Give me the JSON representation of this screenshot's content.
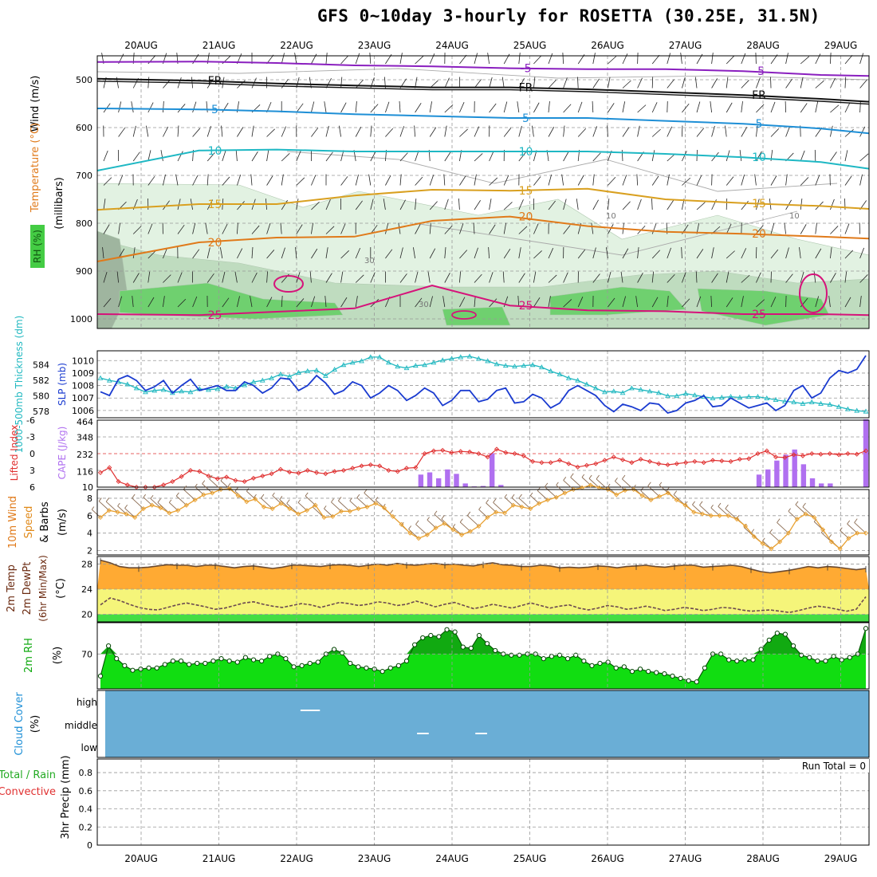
{
  "title": "GFS 0~10day 3-hourly for ROSETTA (30.25E, 31.5N)",
  "colors": {
    "axis": "#000000",
    "grid": "#999999",
    "purple": "#8a1fbf",
    "black": "#111111",
    "blue": "#1e8fd6",
    "cyan": "#1fb8c4",
    "gold": "#d9a020",
    "orange": "#e07a1a",
    "magenta": "#d6127a",
    "rh_light": "#e2f2e2",
    "rh_mid": "#bfdcbf",
    "rh_green": "#6fd06f",
    "rh_dark": "#9fb59f",
    "slp": "#1a3bd0",
    "thick": "#20b8c0",
    "li": "#e03030",
    "cape": "#b070f0",
    "wind_speed": "#e8a030",
    "barb": "#8a6a50",
    "temp_fill": "#ffaa33",
    "dew_fill": "#f5f57a",
    "low_fill": "#44dd44",
    "rh2m_fill": "#11dd11",
    "rh2m_dark": "#11aa11",
    "cloud": "#6aaed6",
    "cloud_bar": "#ffffff"
  },
  "chart_data": [
    {
      "type": "line",
      "panel": "upper-air",
      "ylabels": [
        "Wind (m/s)",
        "Temperature (°C)",
        "(millibars)",
        "RH (%)"
      ],
      "y_axis": "pressure (mb)",
      "ylim": [
        1020,
        450
      ],
      "yticks": [
        500,
        600,
        700,
        800,
        900,
        1000
      ],
      "x_dates": [
        "20AUG",
        "21AUG",
        "22AUG",
        "23AUG",
        "24AUG",
        "25AUG",
        "26AUG",
        "27AUG",
        "28AUG",
        "29AUG"
      ],
      "isotherms": [
        {
          "label": "-5",
          "color": "purple",
          "x": [
            0,
            1,
            2,
            3,
            4,
            5,
            6,
            7,
            8,
            9,
            9.6
          ],
          "p": [
            463,
            462,
            465,
            470,
            472,
            476,
            478,
            478,
            482,
            490,
            492
          ]
        },
        {
          "label": "FR",
          "color": "black",
          "x": [
            0,
            1,
            2,
            3,
            4,
            5,
            6,
            7,
            8,
            9,
            9.6
          ],
          "p": [
            498,
            502,
            508,
            512,
            516,
            516,
            520,
            526,
            532,
            540,
            546
          ]
        },
        {
          "label": "5",
          "color": "blue",
          "x": [
            0,
            1,
            2,
            3,
            4,
            5,
            6,
            7,
            8,
            9,
            9.6
          ],
          "p": [
            560,
            562,
            566,
            572,
            576,
            580,
            580,
            586,
            592,
            602,
            612
          ]
        },
        {
          "label": "10",
          "color": "cyan",
          "x": [
            0,
            1,
            2,
            3,
            4,
            5,
            6,
            7,
            8,
            9,
            9.6
          ],
          "p": [
            690,
            648,
            646,
            650,
            650,
            650,
            650,
            655,
            662,
            672,
            686
          ]
        },
        {
          "label": "15",
          "color": "gold",
          "x": [
            0,
            1,
            2,
            3,
            4,
            5,
            6,
            7,
            8,
            9,
            9.6
          ],
          "p": [
            772,
            760,
            760,
            742,
            730,
            732,
            728,
            750,
            758,
            764,
            770
          ]
        },
        {
          "label": "20",
          "color": "orange",
          "x": [
            0,
            1,
            2,
            3,
            4,
            5,
            6,
            7,
            8,
            9,
            9.6
          ],
          "p": [
            880,
            840,
            830,
            828,
            795,
            786,
            806,
            818,
            822,
            828,
            832
          ]
        },
        {
          "label": "25",
          "color": "magenta",
          "x": [
            0,
            1,
            2,
            3,
            4,
            5,
            6,
            7,
            8,
            9,
            9.6
          ],
          "p": [
            990,
            992,
            985,
            978,
            930,
            972,
            982,
            984,
            990,
            990,
            992
          ]
        }
      ],
      "contour_labels": [
        "-5",
        "FR",
        "5",
        "10",
        "15",
        "20",
        "25",
        "30",
        "10"
      ]
    },
    {
      "type": "line",
      "panel": "slp-thickness",
      "ylabels": [
        "SLP (mb)",
        "1000-500mb Thickness (dm)"
      ],
      "left_ticks": [
        578,
        580,
        582,
        584
      ],
      "right_ticks": [
        1006,
        1007,
        1008,
        1009,
        1010
      ],
      "series": [
        {
          "name": "SLP (mb)",
          "axis": "right",
          "values": [
            1007.5,
            1007.2,
            1008.5,
            1008.8,
            1008.4,
            1007.6,
            1007.9,
            1008.4,
            1007.4,
            1008.0,
            1008.5,
            1007.6,
            1007.8,
            1008.0,
            1007.6,
            1007.6,
            1008.3,
            1008.0,
            1007.4,
            1007.8,
            1008.6,
            1008.5,
            1007.6,
            1008.0,
            1008.8,
            1008.2,
            1007.3,
            1007.6,
            1008.3,
            1008.0,
            1007.0,
            1007.4,
            1008.0,
            1007.6,
            1006.8,
            1007.2,
            1007.8,
            1007.4,
            1006.4,
            1006.8,
            1007.6,
            1007.6,
            1006.7,
            1006.9,
            1007.6,
            1007.8,
            1006.6,
            1006.7,
            1007.3,
            1007.0,
            1006.2,
            1006.6,
            1007.6,
            1008.0,
            1007.6,
            1007.2,
            1006.4,
            1005.9,
            1006.5,
            1006.3,
            1006.0,
            1006.6,
            1006.5,
            1005.8,
            1006.0,
            1006.6,
            1006.8,
            1007.2,
            1006.3,
            1006.4,
            1007.0,
            1006.6,
            1006.2,
            1006.4,
            1006.6,
            1006.0,
            1006.4,
            1007.6,
            1008.0,
            1007.0,
            1007.4,
            1008.6,
            1009.2,
            1009.0,
            1009.3,
            1010.4
          ]
        },
        {
          "name": "1000-500mb Thickness (dm)",
          "axis": "left",
          "values": [
            582.3,
            582.0,
            581.8,
            581.5,
            581.0,
            580.5,
            580.7,
            580.8,
            580.4,
            580.6,
            580.5,
            580.9,
            580.8,
            580.9,
            581.2,
            581.0,
            581.4,
            581.8,
            582.0,
            582.3,
            582.8,
            582.5,
            583.0,
            583.2,
            583.3,
            582.6,
            583.4,
            584.0,
            584.3,
            584.5,
            585.0,
            585.0,
            584.3,
            583.8,
            583.6,
            583.9,
            584.0,
            584.3,
            584.6,
            584.8,
            585.0,
            585.1,
            584.8,
            584.5,
            584.1,
            583.9,
            583.8,
            583.9,
            584.0,
            583.7,
            583.2,
            582.8,
            582.3,
            582.0,
            581.5,
            581.0,
            580.5,
            580.6,
            580.4,
            581.0,
            580.8,
            580.6,
            580.4,
            580.0,
            580.0,
            580.3,
            580.1,
            579.9,
            579.7,
            579.8,
            579.9,
            579.8,
            579.9,
            579.9,
            579.7,
            579.5,
            579.3,
            579.2,
            579.0,
            579.2,
            579.0,
            578.9,
            578.6,
            578.3,
            578.1,
            578.0
          ]
        }
      ]
    },
    {
      "type": "bar",
      "panel": "lifted-index-cape",
      "ylabels": [
        "Lifted Index",
        "CAPE (J/kg)"
      ],
      "left_ticks": [
        "-6",
        "-3",
        "0",
        "3",
        "6"
      ],
      "right_ticks": [
        "10",
        "116",
        "232",
        "348",
        "464"
      ],
      "lifted_index": [
        3.4,
        2.5,
        5.0,
        5.6,
        6.0,
        6.0,
        6.0,
        5.6,
        5.0,
        4.1,
        3.0,
        3.2,
        4.0,
        4.5,
        4.2,
        4.8,
        5.0,
        4.4,
        4.0,
        3.6,
        2.8,
        3.3,
        3.5,
        3.0,
        3.4,
        3.6,
        3.2,
        3.0,
        2.6,
        2.2,
        2.0,
        2.2,
        3.0,
        3.2,
        2.6,
        2.5,
        0.0,
        -0.5,
        -0.6,
        -0.2,
        -0.4,
        -0.3,
        0.0,
        0.6,
        -0.8,
        -0.2,
        0.0,
        0.4,
        1.4,
        1.6,
        1.6,
        1.2,
        1.8,
        2.4,
        2.1,
        1.8,
        1.2,
        0.6,
        1.1,
        1.6,
        1.0,
        1.4,
        1.8,
        2.0,
        1.8,
        1.6,
        1.4,
        1.6,
        1.2,
        1.3,
        1.4,
        1.0,
        0.9,
        0.0,
        -0.5,
        0.6,
        0.7,
        0.2,
        0.4,
        0.0,
        0.1,
        0.0,
        0.2,
        0.0,
        0.1,
        -0.5
      ],
      "cape": [
        10,
        10,
        10,
        10,
        10,
        10,
        10,
        10,
        10,
        10,
        10,
        10,
        10,
        10,
        10,
        10,
        10,
        10,
        10,
        10,
        10,
        10,
        10,
        10,
        10,
        10,
        10,
        10,
        10,
        10,
        10,
        10,
        10,
        10,
        10,
        10,
        95,
        110,
        70,
        130,
        100,
        35,
        15,
        18,
        240,
        25,
        10,
        10,
        10,
        10,
        10,
        10,
        10,
        10,
        10,
        10,
        10,
        10,
        10,
        10,
        10,
        10,
        10,
        10,
        10,
        10,
        10,
        10,
        10,
        10,
        10,
        10,
        10,
        10,
        95,
        130,
        190,
        230,
        265,
        165,
        70,
        35,
        35,
        10,
        10,
        12,
        470
      ]
    },
    {
      "type": "line",
      "panel": "10m-wind",
      "ylabels": [
        "10m Wind",
        "Speed",
        "& Barbs",
        "(m/s)"
      ],
      "left_ticks": [
        2,
        4,
        6,
        8
      ],
      "ylim": [
        1.5,
        9.0
      ],
      "speed": [
        5.8,
        6.6,
        6.4,
        6.2,
        5.8,
        6.8,
        7.2,
        6.9,
        6.3,
        6.6,
        7.2,
        7.8,
        8.4,
        8.6,
        9.0,
        9.1,
        8.3,
        7.6,
        7.9,
        7.0,
        6.8,
        7.4,
        6.8,
        6.2,
        6.6,
        7.2,
        5.8,
        5.9,
        6.5,
        6.5,
        6.8,
        7.0,
        7.4,
        6.9,
        5.9,
        5.0,
        4.0,
        3.4,
        3.8,
        4.6,
        5.1,
        4.4,
        3.8,
        4.2,
        4.8,
        5.8,
        6.4,
        6.3,
        7.2,
        7.0,
        6.8,
        7.4,
        7.8,
        8.1,
        8.6,
        9.0,
        9.2,
        9.5,
        9.2,
        9.0,
        8.4,
        8.9,
        9.0,
        8.3,
        7.8,
        8.2,
        8.6,
        7.8,
        7.2,
        6.4,
        6.2,
        6.0,
        6.0,
        6.0,
        5.6,
        4.8,
        3.6,
        2.8,
        2.2,
        3.0,
        4.0,
        5.6,
        6.2,
        5.8,
        4.4,
        3.0,
        2.2,
        3.4,
        4.0,
        4.0
      ]
    },
    {
      "type": "area",
      "panel": "2m-temperature",
      "ylabels": [
        "2m Temp",
        "2m DewPt",
        "(6hr Min/Max)",
        "(°C)"
      ],
      "left_ticks": [
        20,
        24,
        28
      ],
      "ylim": [
        18.8,
        29.2
      ],
      "temp": [
        28.6,
        28.2,
        27.6,
        27.4,
        27.4,
        27.5,
        27.7,
        27.9,
        27.8,
        27.8,
        27.6,
        27.8,
        27.8,
        27.6,
        27.4,
        27.6,
        27.7,
        27.5,
        27.3,
        27.5,
        27.8,
        27.8,
        27.7,
        27.6,
        27.8,
        27.9,
        27.8,
        27.6,
        27.8,
        28.0,
        27.8,
        28.1,
        27.9,
        27.8,
        28.0,
        28.1,
        27.9,
        28.0,
        27.8,
        27.7,
        28.0,
        28.2,
        27.9,
        27.8,
        27.6,
        27.6,
        27.8,
        27.7,
        27.4,
        27.5,
        27.4,
        27.5,
        27.7,
        27.6,
        27.4,
        27.6,
        27.7,
        27.8,
        27.6,
        27.5,
        27.7,
        27.8,
        27.8,
        27.5,
        27.6,
        27.7,
        27.8,
        27.6,
        27.2,
        26.8,
        26.6,
        26.8,
        27.0,
        27.3,
        27.6,
        27.4,
        27.6,
        27.5,
        27.3,
        27.1,
        27.3
      ],
      "dewpoint": [
        21.5,
        22.6,
        22.2,
        21.6,
        21.1,
        20.8,
        20.7,
        21.1,
        21.5,
        21.8,
        21.5,
        21.2,
        20.8,
        21.0,
        21.4,
        21.8,
        22.0,
        21.6,
        21.3,
        21.1,
        21.4,
        21.7,
        21.5,
        21.1,
        21.5,
        21.9,
        21.7,
        21.4,
        21.6,
        22.0,
        21.8,
        21.4,
        21.6,
        22.1,
        21.7,
        21.2,
        21.6,
        21.9,
        21.4,
        20.9,
        21.2,
        21.6,
        21.3,
        21.0,
        21.4,
        21.8,
        21.4,
        21.0,
        21.3,
        21.5,
        21.0,
        20.7,
        21.0,
        21.4,
        21.2,
        20.8,
        21.0,
        21.3,
        21.0,
        20.6,
        20.8,
        21.1,
        20.9,
        20.6,
        20.8,
        21.1,
        21.0,
        20.7,
        20.5,
        20.6,
        20.7,
        20.5,
        20.3,
        20.6,
        21.0,
        21.3,
        21.1,
        20.8,
        20.5,
        20.8,
        22.8
      ]
    },
    {
      "type": "area",
      "panel": "2m-rh",
      "ylabels": [
        "2m RH",
        "(%)"
      ],
      "left_ticks": [
        70
      ],
      "ylim": [
        40,
        97
      ],
      "values": [
        51,
        77,
        66,
        60,
        56,
        57,
        58,
        58,
        61,
        64,
        64,
        61,
        62,
        62,
        64,
        66,
        64,
        63,
        67,
        65,
        64,
        68,
        70,
        66,
        59,
        60,
        62,
        63,
        70,
        74,
        71,
        62,
        59,
        58,
        57,
        55,
        58,
        60,
        64,
        78,
        84,
        86,
        85,
        91,
        89,
        76,
        75,
        86,
        79,
        73,
        70,
        69,
        69,
        70,
        70,
        66,
        68,
        69,
        66,
        69,
        64,
        60,
        62,
        63,
        58,
        59,
        55,
        57,
        55,
        54,
        53,
        51,
        49,
        47,
        46,
        58,
        70,
        70,
        65,
        64,
        65,
        65,
        74,
        82,
        88,
        87,
        77,
        69,
        67,
        64,
        64,
        68,
        65,
        67,
        70,
        92
      ]
    },
    {
      "type": "table",
      "panel": "cloud-cover",
      "ylabels": [
        "Cloud Cover",
        "(%)"
      ],
      "levels": [
        "high",
        "middle",
        "low"
      ],
      "marks": [
        {
          "level": "high",
          "from": 2.05,
          "to": 2.3
        },
        {
          "level": "middle",
          "from": 3.55,
          "to": 3.7
        },
        {
          "level": "middle",
          "from": 4.3,
          "to": 4.45
        }
      ]
    },
    {
      "type": "bar",
      "panel": "precipitation",
      "ylabels": [
        "3hr Precip (mm)"
      ],
      "left_labels": [
        "Total / Rain",
        "Convective"
      ],
      "left_ticks": [
        "0",
        "0.2",
        "0.4",
        "0.6",
        "0.8"
      ],
      "ylim": [
        0,
        0.95
      ],
      "run_total": "Run Total = 0",
      "values": []
    }
  ]
}
